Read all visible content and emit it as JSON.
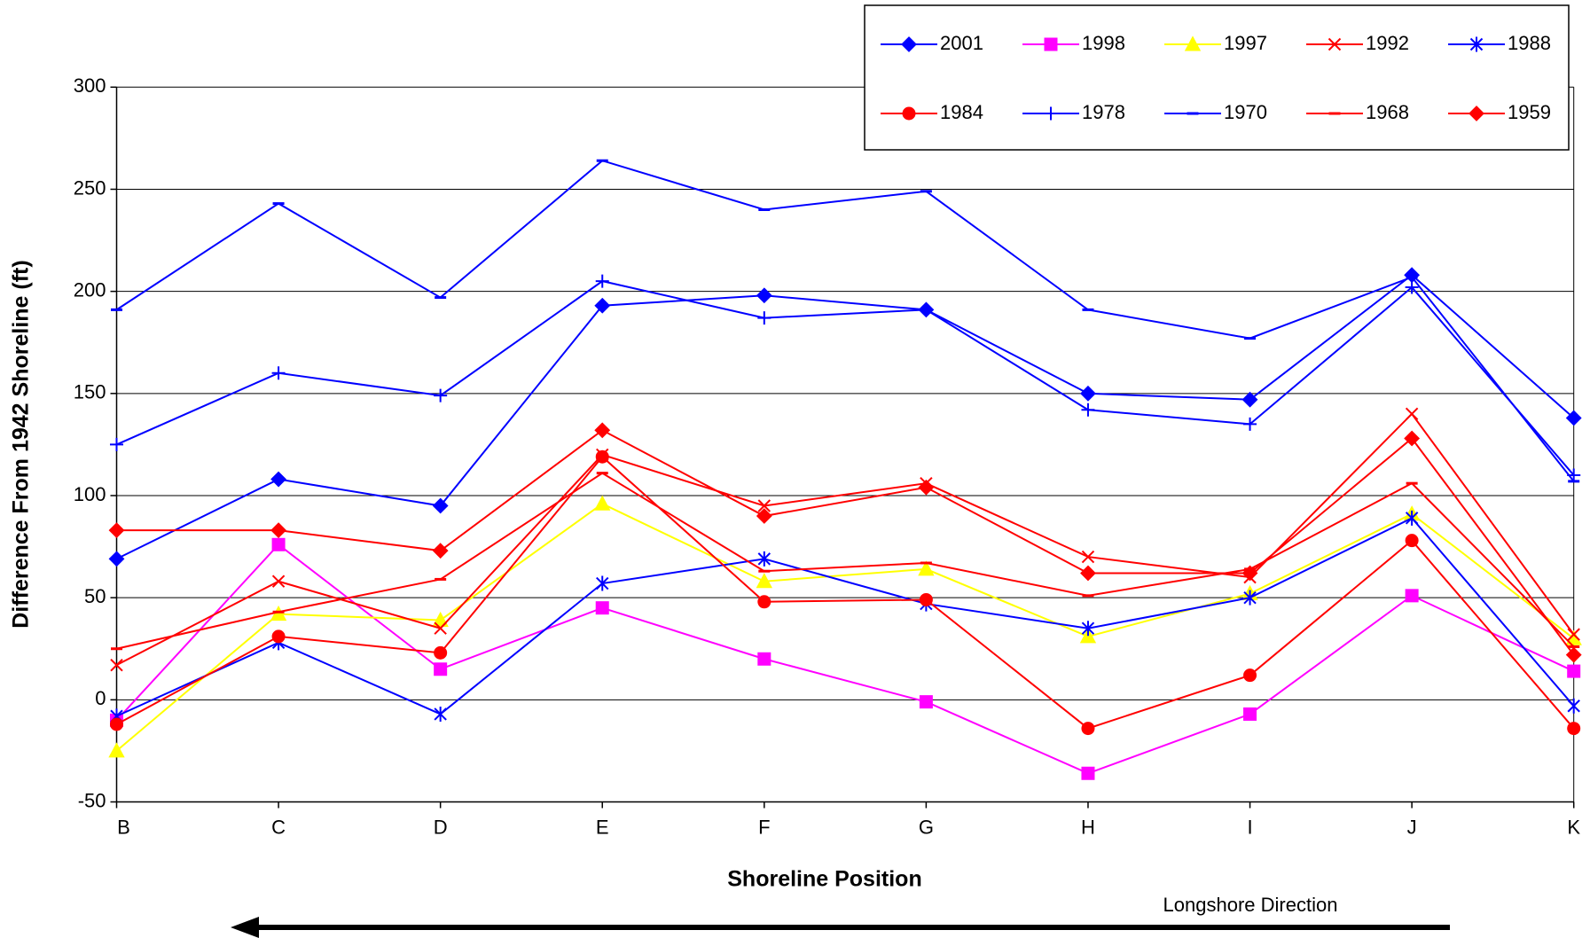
{
  "chart_data": {
    "type": "line",
    "y_label": "Difference From 1942 Shoreline (ft)",
    "x_label": "Shoreline Position",
    "annotation": "Longshore Direction",
    "categories": [
      "B",
      "C",
      "D",
      "E",
      "F",
      "G",
      "H",
      "I",
      "J",
      "K"
    ],
    "ylim": [
      -50,
      300
    ],
    "yticks": [
      -50,
      0,
      50,
      100,
      150,
      200,
      250,
      300
    ],
    "grid": true,
    "series": [
      {
        "name": "2001",
        "color": "#0000ff",
        "marker": "diamond",
        "values": [
          69,
          108,
          95,
          193,
          198,
          191,
          150,
          147,
          208,
          138
        ]
      },
      {
        "name": "1998",
        "color": "#ff00ff",
        "marker": "square",
        "values": [
          -10,
          76,
          15,
          45,
          20,
          -1,
          -36,
          -7,
          51,
          14
        ]
      },
      {
        "name": "1997",
        "color": "#ffff00",
        "marker": "triangle",
        "values": [
          -25,
          42,
          39,
          96,
          58,
          64,
          31,
          52,
          91,
          30
        ]
      },
      {
        "name": "1992",
        "color": "#ff0000",
        "marker": "x",
        "values": [
          17,
          58,
          35,
          120,
          95,
          106,
          70,
          60,
          140,
          32
        ]
      },
      {
        "name": "1988",
        "color": "#0000ff",
        "marker": "star",
        "values": [
          -8,
          28,
          -7,
          57,
          69,
          47,
          35,
          50,
          89,
          -3
        ]
      },
      {
        "name": "1984",
        "color": "#ff0000",
        "marker": "circle",
        "values": [
          -12,
          31,
          23,
          119,
          48,
          49,
          -14,
          12,
          78,
          -14
        ]
      },
      {
        "name": "1978",
        "color": "#0000ff",
        "marker": "plus",
        "values": [
          125,
          160,
          149,
          205,
          187,
          191,
          142,
          135,
          202,
          110
        ]
      },
      {
        "name": "1970",
        "color": "#0000ff",
        "marker": "dash",
        "values": [
          191,
          243,
          197,
          264,
          240,
          249,
          191,
          177,
          207,
          107
        ]
      },
      {
        "name": "1968",
        "color": "#ff0000",
        "marker": "dash",
        "values": [
          25,
          43,
          59,
          111,
          63,
          67,
          51,
          64,
          106,
          26
        ]
      },
      {
        "name": "1959",
        "color": "#ff0000",
        "marker": "diamond",
        "values": [
          83,
          83,
          73,
          132,
          90,
          104,
          62,
          62,
          128,
          22
        ]
      }
    ]
  }
}
